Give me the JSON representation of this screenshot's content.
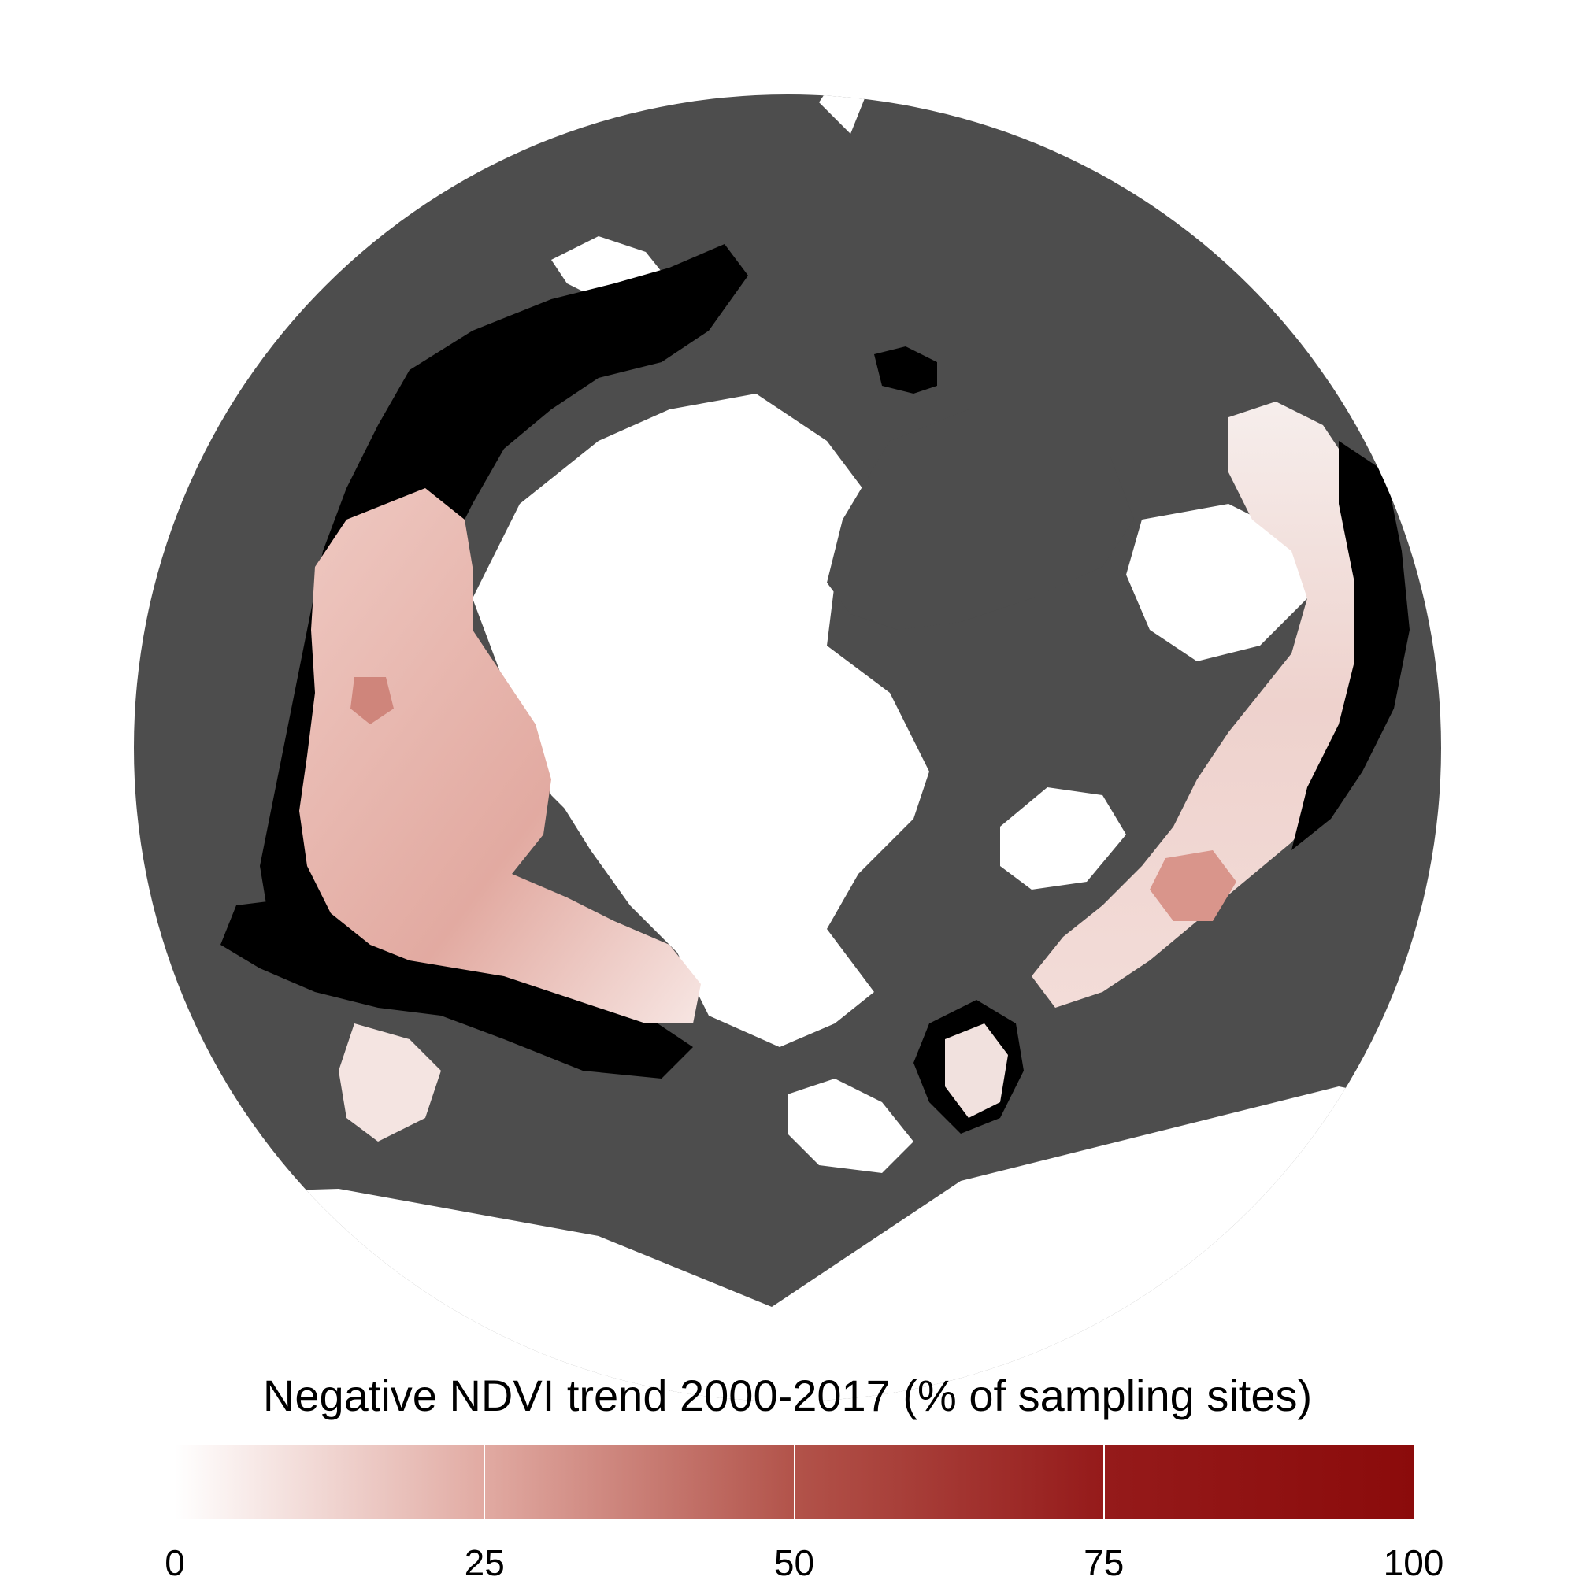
{
  "colors": {
    "background": "#ffffff",
    "land_no_data": "#4d4d4d",
    "water_ice": "#ffffff",
    "excluded_black": "#000000",
    "scale_low": "#ffffff",
    "scale_high": "#8b0b0b"
  },
  "legend": {
    "title": "Negative NDVI trend 2000-2017 (% of sampling sites)",
    "ticks": [
      {
        "label": "0",
        "value": 0
      },
      {
        "label": "25",
        "value": 25
      },
      {
        "label": "50",
        "value": 50
      },
      {
        "label": "75",
        "value": 75
      },
      {
        "label": "100",
        "value": 100
      }
    ]
  }
}
